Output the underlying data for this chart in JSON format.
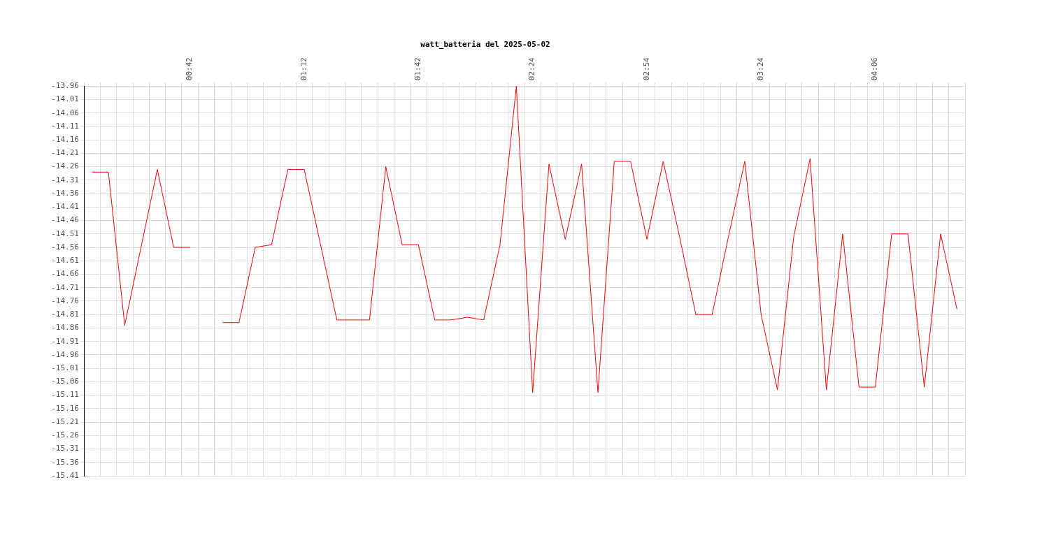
{
  "chart_data": {
    "type": "line",
    "title": "watt_batteria del 2025-05-02",
    "categories": [
      null,
      null,
      null,
      null,
      null,
      null,
      "00:42",
      null,
      null,
      null,
      null,
      null,
      null,
      "01:12",
      null,
      null,
      null,
      null,
      null,
      null,
      "01:42",
      null,
      null,
      null,
      null,
      null,
      null,
      "02:24",
      null,
      null,
      null,
      null,
      null,
      null,
      "02:54",
      null,
      null,
      null,
      null,
      null,
      null,
      "03:24",
      null,
      null,
      null,
      null,
      null,
      null,
      "04:06",
      null,
      null,
      null,
      null,
      null
    ],
    "series": [
      {
        "color": "#ff0000",
        "values": [
          -14.28,
          -14.28,
          -14.85,
          -14.56,
          -14.27,
          -14.56,
          -14.56,
          null,
          -14.84,
          -14.84,
          -14.56,
          -14.55,
          -14.27,
          -14.27,
          -14.55,
          -14.83,
          -14.83,
          -14.83,
          -14.26,
          -14.55,
          -14.55,
          -14.83,
          -14.83,
          -14.82,
          -14.83,
          -14.55,
          -13.96,
          -15.1,
          -14.25,
          -14.53,
          -14.25,
          -15.1,
          -14.24,
          -14.24,
          -14.53,
          -14.24,
          -14.52,
          -14.81,
          -14.81,
          -14.52,
          -14.24,
          -14.81,
          -15.09,
          -14.52,
          -14.23,
          -15.09,
          -14.51,
          -15.08,
          -15.08,
          -14.51,
          -14.51,
          -15.08,
          -14.51,
          -14.79
        ]
      }
    ],
    "ylim": [
      -15.41,
      -13.96
    ],
    "yticks": [
      -13.96,
      -14.01,
      -14.06,
      -14.11,
      -14.16,
      -14.21,
      -14.26,
      -14.31,
      -14.36,
      -14.41,
      -14.46,
      -14.51,
      -14.56,
      -14.61,
      -14.66,
      -14.71,
      -14.76,
      -14.81,
      -14.86,
      -14.91,
      -14.96,
      -15.01,
      -15.06,
      -15.11,
      -15.16,
      -15.21,
      -15.26,
      -15.31,
      -15.36,
      -15.41
    ],
    "grid": true,
    "marker": "none",
    "line_style": "solid",
    "legend": false
  }
}
